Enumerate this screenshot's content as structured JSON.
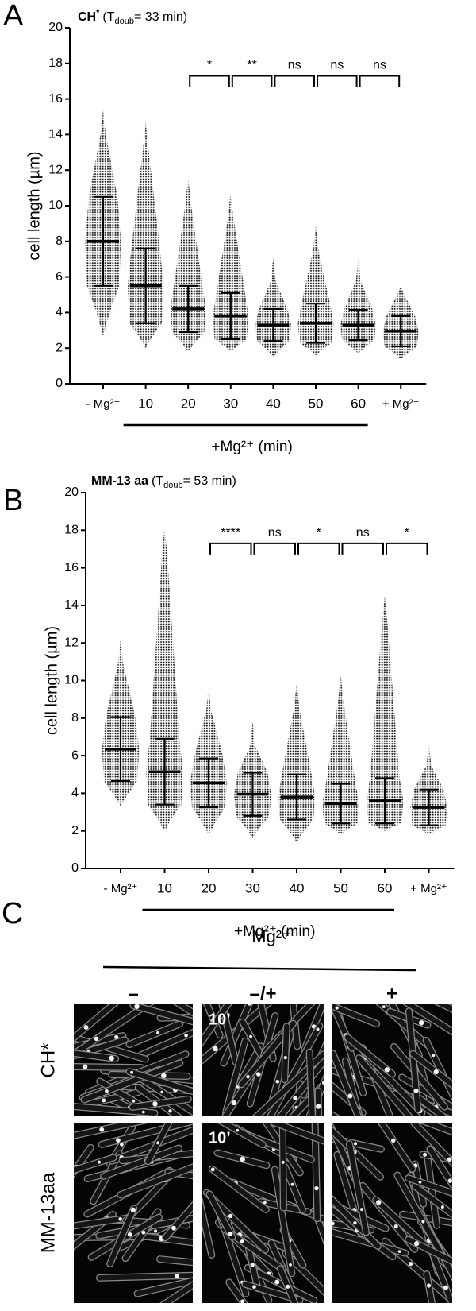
{
  "chart_data": [
    {
      "type": "dotplot",
      "panel": "A",
      "title": {
        "strain": "CH",
        "strain_sup": "*",
        "t_pre": "(T",
        "t_sub": "doub",
        "t_post": "= 33 min)"
      },
      "ylabel": "cell length (µm)",
      "xlabel": "+Mg²⁺ (min)",
      "categories": [
        "- Mg²⁺",
        "10",
        "20",
        "30",
        "40",
        "50",
        "60",
        "+ Mg²⁺"
      ],
      "mean": [
        8.0,
        5.5,
        4.2,
        3.8,
        3.3,
        3.4,
        3.3,
        2.95
      ],
      "sd": [
        2.5,
        2.1,
        1.3,
        1.3,
        0.9,
        1.1,
        0.85,
        0.85
      ],
      "min": [
        2.7,
        2.0,
        1.8,
        1.8,
        1.5,
        1.6,
        1.7,
        1.4
      ],
      "max": [
        15.4,
        14.7,
        11.6,
        10.8,
        7.1,
        8.9,
        7.1,
        5.5
      ],
      "ylim": [
        0,
        20
      ],
      "yticks": [
        0,
        2,
        4,
        6,
        8,
        10,
        12,
        14,
        16,
        18,
        20
      ],
      "comparisons": [
        {
          "between": [
            2,
            3
          ],
          "label": "*"
        },
        {
          "between": [
            3,
            4
          ],
          "label": "**"
        },
        {
          "between": [
            4,
            5
          ],
          "label": "ns"
        },
        {
          "between": [
            5,
            6
          ],
          "label": "ns"
        },
        {
          "between": [
            6,
            7
          ],
          "label": "ns"
        }
      ]
    },
    {
      "type": "dotplot",
      "panel": "B",
      "title": {
        "strain": "MM-13 aa",
        "t_pre": "(T",
        "t_sub": "doub",
        "t_post": "= 53 min)"
      },
      "ylabel": "cell length (µm)",
      "xlabel": "+Mg²⁺ (min)",
      "categories": [
        "- Mg²⁺",
        "10",
        "20",
        "30",
        "40",
        "50",
        "60",
        "+ Mg²⁺"
      ],
      "mean": [
        6.35,
        5.15,
        4.55,
        3.95,
        3.8,
        3.45,
        3.6,
        3.25
      ],
      "sd": [
        1.7,
        1.75,
        1.3,
        1.15,
        1.2,
        1.05,
        1.2,
        0.95
      ],
      "min": [
        3.3,
        2.0,
        1.8,
        1.6,
        1.4,
        1.8,
        2.0,
        1.8
      ],
      "max": [
        12.2,
        18.1,
        9.7,
        7.8,
        9.9,
        10.3,
        14.5,
        6.7
      ],
      "ylim": [
        0,
        20
      ],
      "yticks": [
        0,
        2,
        4,
        6,
        8,
        10,
        12,
        14,
        16,
        18,
        20
      ],
      "comparisons": [
        {
          "between": [
            2,
            3
          ],
          "label": "****"
        },
        {
          "between": [
            3,
            4
          ],
          "label": "ns"
        },
        {
          "between": [
            4,
            5
          ],
          "label": "*"
        },
        {
          "between": [
            5,
            6
          ],
          "label": "ns"
        },
        {
          "between": [
            6,
            7
          ],
          "label": "*"
        }
      ]
    }
  ],
  "panel_c": {
    "panel": "C",
    "header": "Mg²⁺",
    "columns": [
      "–",
      "–/+",
      "+"
    ],
    "rows": [
      {
        "name": "CH*",
        "time_label": "10’"
      },
      {
        "name": "MM-13aa",
        "time_label": "10’"
      }
    ]
  }
}
